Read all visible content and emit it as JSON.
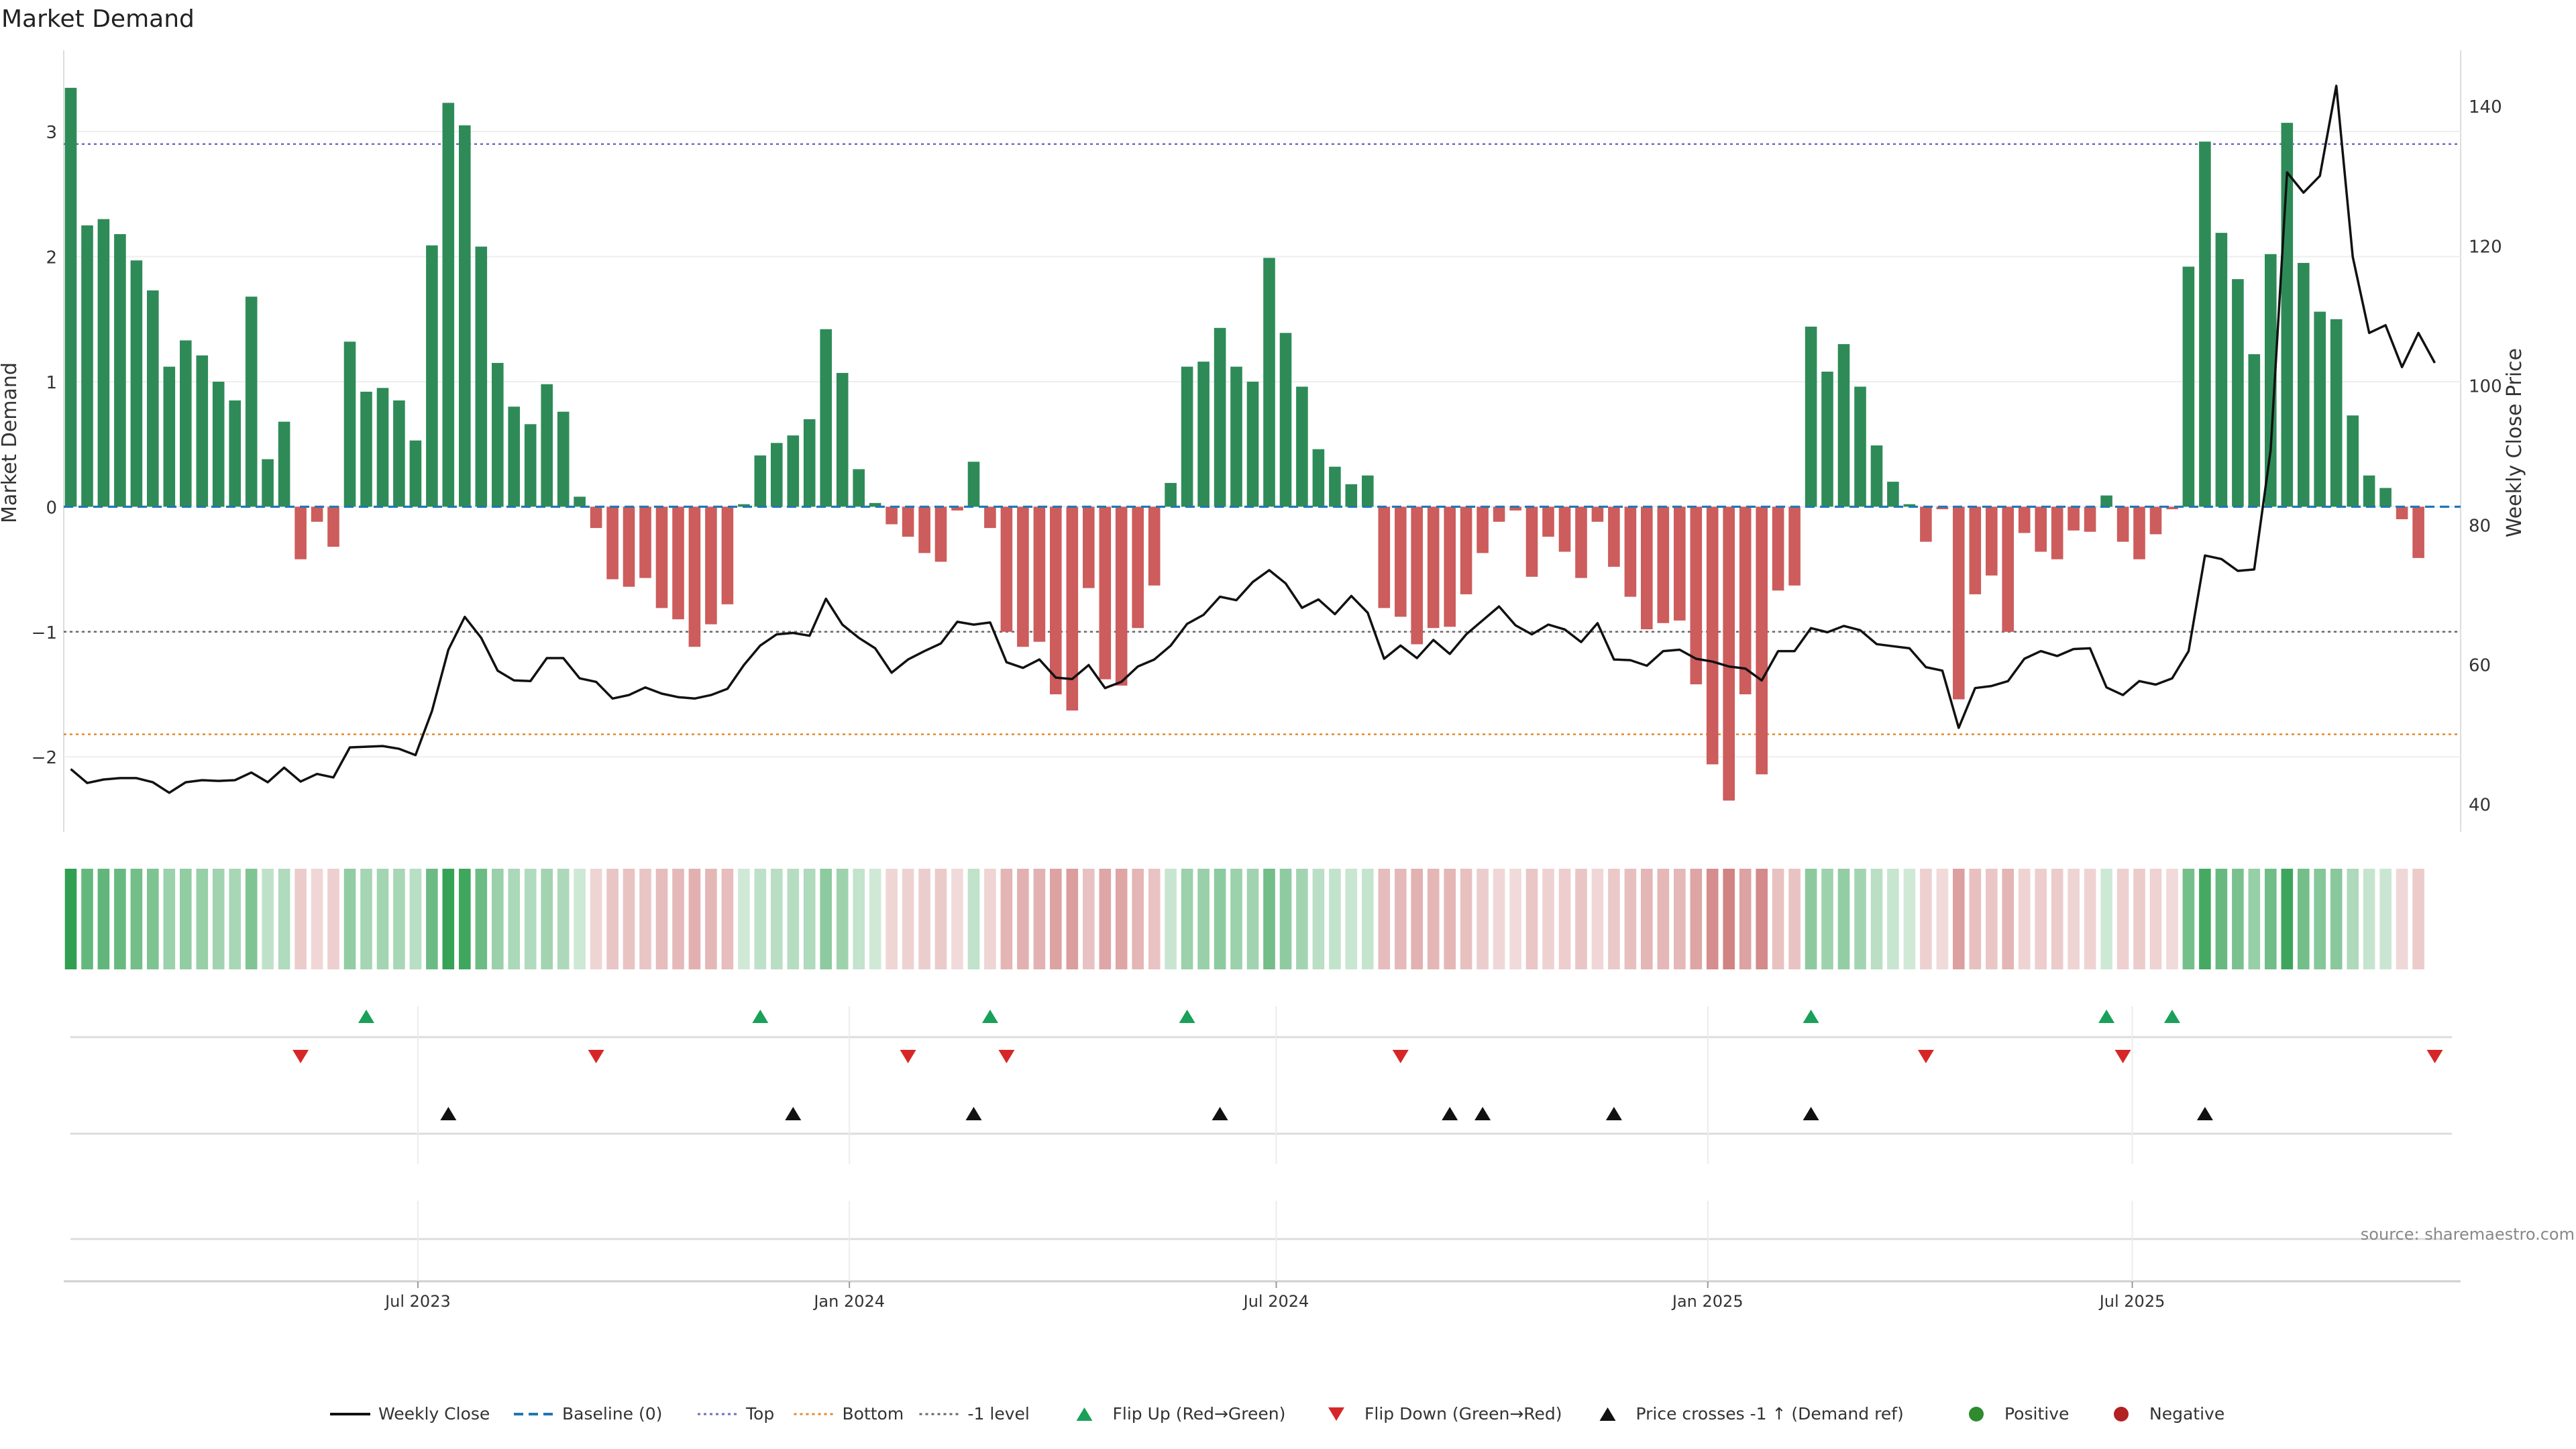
{
  "chart_data": {
    "type": "bar",
    "title": "Market Demand",
    "ylabel": "Market Demand",
    "y2label": "Weekly Close Price",
    "ylim": [
      -2.6,
      3.65
    ],
    "y2lim": [
      36,
      148
    ],
    "yticks": [
      -2,
      -1,
      0,
      1,
      2,
      3
    ],
    "y2ticks": [
      40,
      60,
      80,
      100,
      120,
      140
    ],
    "x_range": [
      "2023-01-31",
      "2025-11-18"
    ],
    "xticks": [
      {
        "date": "2023-07-01",
        "label": "Jul 2023"
      },
      {
        "date": "2024-01-01",
        "label": "Jan 2024"
      },
      {
        "date": "2024-07-01",
        "label": "Jul 2024"
      },
      {
        "date": "2025-01-01",
        "label": "Jan 2025"
      },
      {
        "date": "2025-07-01",
        "label": "Jul 2025"
      }
    ],
    "start_date": "2023-02-03",
    "week_step_days": 7,
    "demand": [
      3.35,
      2.25,
      2.3,
      2.18,
      1.97,
      1.73,
      1.12,
      1.33,
      1.21,
      1.0,
      0.85,
      1.68,
      0.38,
      0.68,
      -0.42,
      -0.12,
      -0.32,
      1.32,
      0.92,
      0.95,
      0.85,
      0.53,
      2.09,
      3.23,
      3.05,
      2.08,
      1.15,
      0.8,
      0.66,
      0.98,
      0.76,
      0.08,
      -0.17,
      -0.58,
      -0.64,
      -0.57,
      -0.81,
      -0.9,
      -1.12,
      -0.94,
      -0.78,
      0.02,
      0.41,
      0.51,
      0.57,
      0.7,
      1.42,
      1.07,
      0.3,
      0.03,
      -0.14,
      -0.24,
      -0.37,
      -0.44,
      -0.03,
      0.36,
      -0.17,
      -1.0,
      -1.12,
      -1.08,
      -1.5,
      -1.63,
      -0.65,
      -1.38,
      -1.43,
      -0.97,
      -0.63,
      0.19,
      1.12,
      1.16,
      1.43,
      1.12,
      1.0,
      1.99,
      1.39,
      0.96,
      0.46,
      0.32,
      0.18,
      0.25,
      -0.81,
      -0.88,
      -1.1,
      -0.97,
      -0.96,
      -0.7,
      -0.37,
      -0.12,
      -0.03,
      -0.56,
      -0.24,
      -0.36,
      -0.57,
      -0.12,
      -0.48,
      -0.72,
      -0.98,
      -0.93,
      -0.91,
      -1.42,
      -2.06,
      -2.35,
      -1.5,
      -2.14,
      -0.67,
      -0.63,
      1.44,
      1.08,
      1.3,
      0.96,
      0.49,
      0.2,
      0.02,
      -0.28,
      -0.02,
      -1.54,
      -0.7,
      -0.55,
      -1.0,
      -0.21,
      -0.36,
      -0.42,
      -0.19,
      -0.2,
      0.09,
      -0.28,
      -0.42,
      -0.22,
      -0.02,
      1.92,
      2.92,
      2.19,
      1.82,
      1.22,
      2.02,
      3.07,
      1.95,
      1.56,
      1.5,
      0.73,
      0.25,
      0.15,
      -0.1,
      -0.41
    ],
    "price": [
      45,
      43,
      43.5,
      43.7,
      43.7,
      43.1,
      41.6,
      43.1,
      43.4,
      43.3,
      43.4,
      44.5,
      43.1,
      45.2,
      43.2,
      44.3,
      43.8,
      48.1,
      48.2,
      48.3,
      47.9,
      47,
      53.3,
      62.1,
      66.8,
      63.8,
      59.1,
      57.7,
      57.6,
      60.9,
      60.9,
      58,
      57.5,
      55.1,
      55.6,
      56.7,
      55.8,
      55.3,
      55.1,
      55.6,
      56.5,
      59.9,
      62.7,
      64.3,
      64.5,
      64.1,
      69.4,
      65.7,
      63.8,
      62.3,
      58.8,
      60.7,
      61.9,
      63,
      66.1,
      65.7,
      66,
      60.3,
      59.5,
      60.7,
      58.1,
      57.9,
      59.9,
      56.6,
      57.5,
      59.7,
      60.7,
      62.7,
      65.8,
      67.1,
      69.7,
      69.2,
      71.8,
      73.5,
      71.6,
      68.1,
      69.3,
      67.2,
      69.8,
      67.4,
      60.8,
      62.7,
      60.9,
      63.5,
      61.5,
      64.3,
      66.3,
      68.3,
      65.6,
      64.3,
      65.7,
      65,
      63.2,
      65.9,
      60.7,
      60.6,
      59.8,
      61.9,
      62.1,
      60.8,
      60.4,
      59.7,
      59.4,
      57.7,
      61.9,
      61.9,
      65.2,
      64.6,
      65.5,
      64.9,
      62.9,
      62.6,
      62.3,
      59.6,
      59.1,
      50.9,
      56.6,
      56.9,
      57.6,
      60.8,
      61.9,
      61.2,
      62.2,
      62.3,
      56.7,
      55.6,
      57.6,
      57.1,
      58,
      61.9,
      75.6,
      75.1,
      73.4,
      73.6,
      90.7,
      130.5,
      127.6,
      130,
      142.9,
      118.4,
      107.5,
      108.6,
      102.6,
      107.5,
      103.2
    ],
    "reference_lines": [
      {
        "name": "Baseline (0)",
        "value": 0,
        "color": "#1f77b4",
        "style": "dashed"
      },
      {
        "name": "Top",
        "value": 2.9,
        "color": "#6c6cc4",
        "style": "dotted"
      },
      {
        "name": "Bottom",
        "value": -1.82,
        "color": "#e08a2b",
        "style": "dotted"
      },
      {
        "name": "-1 level",
        "value": -1,
        "color": "#666666",
        "style": "dotted"
      }
    ],
    "events": {
      "flip_up": [
        "2023-06-09",
        "2023-11-24",
        "2024-03-01",
        "2024-05-24",
        "2025-02-14",
        "2025-06-20",
        "2025-07-18"
      ],
      "flip_down": [
        "2023-05-12",
        "2023-09-15",
        "2024-01-26",
        "2024-03-08",
        "2024-08-23",
        "2025-04-04",
        "2025-06-27",
        "2025-11-07"
      ],
      "price_cross": [
        "2023-07-14",
        "2023-12-08",
        "2024-02-23",
        "2024-06-07",
        "2024-09-13",
        "2024-09-27",
        "2024-11-22",
        "2025-02-14",
        "2025-08-01"
      ]
    },
    "colors": {
      "positive": "#2e8b57",
      "negative": "#cd5c5c",
      "price": "#111111",
      "flip_up": "#1aa058",
      "flip_down": "#d62728",
      "cross": "#111111"
    }
  },
  "legend": [
    {
      "label": "Weekly Close",
      "type": "line",
      "color": "#111111"
    },
    {
      "label": "Baseline (0)",
      "type": "dash",
      "color": "#1f77b4"
    },
    {
      "label": "Top",
      "type": "dot",
      "color": "#6c6cc4"
    },
    {
      "label": "Bottom",
      "type": "dot",
      "color": "#e08a2b"
    },
    {
      "label": "-1 level",
      "type": "dot",
      "color": "#666666"
    },
    {
      "label": "Flip Up (Red→Green)",
      "type": "tri-up",
      "color": "#1aa058"
    },
    {
      "label": "Flip Down (Green→Red)",
      "type": "tri-down",
      "color": "#d62728"
    },
    {
      "label": "Price crosses -1 ↑ (Demand ref)",
      "type": "tri-up",
      "color": "#111111"
    },
    {
      "label": "Positive",
      "type": "circle",
      "color": "#2e8b2e"
    },
    {
      "label": "Negative",
      "type": "circle",
      "color": "#b22222"
    }
  ],
  "source": "source: sharemaestro.com"
}
